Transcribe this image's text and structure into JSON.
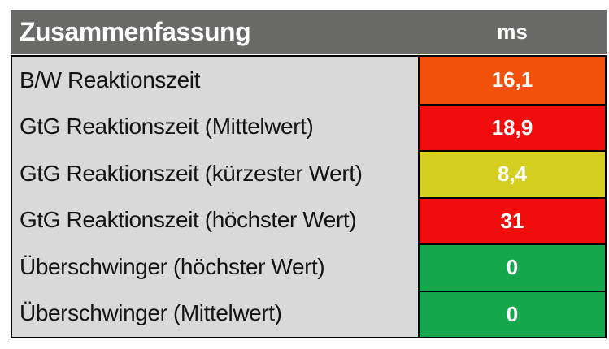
{
  "header": {
    "title": "Zusammenfassung",
    "unit_label": "ms"
  },
  "rows": [
    {
      "label": "B/W Reaktionszeit",
      "value": "16,1",
      "color": "#f2500b",
      "rating": "orange"
    },
    {
      "label": "GtG Reaktionszeit (Mittelwert)",
      "value": "18,9",
      "color": "#f20d0d",
      "rating": "red"
    },
    {
      "label": "GtG Reaktionszeit (kürzester Wert)",
      "value": "8,4",
      "color": "#d3ce20",
      "rating": "yellow"
    },
    {
      "label": "GtG Reaktionszeit (höchster Wert)",
      "value": "31",
      "color": "#f20d0d",
      "rating": "red"
    },
    {
      "label": "Überschwinger (höchster Wert)",
      "value": "0",
      "color": "#16a74c",
      "rating": "green"
    },
    {
      "label": "Überschwinger (Mittelwert)",
      "value": "0",
      "color": "#16a74c",
      "rating": "green"
    }
  ],
  "colors": {
    "header_bg": "#6a6a69",
    "label_bg": "#d9d9d9",
    "border": "#000000",
    "header_text": "#ffffff",
    "value_text": "#ffffff",
    "label_text": "#141414"
  }
}
